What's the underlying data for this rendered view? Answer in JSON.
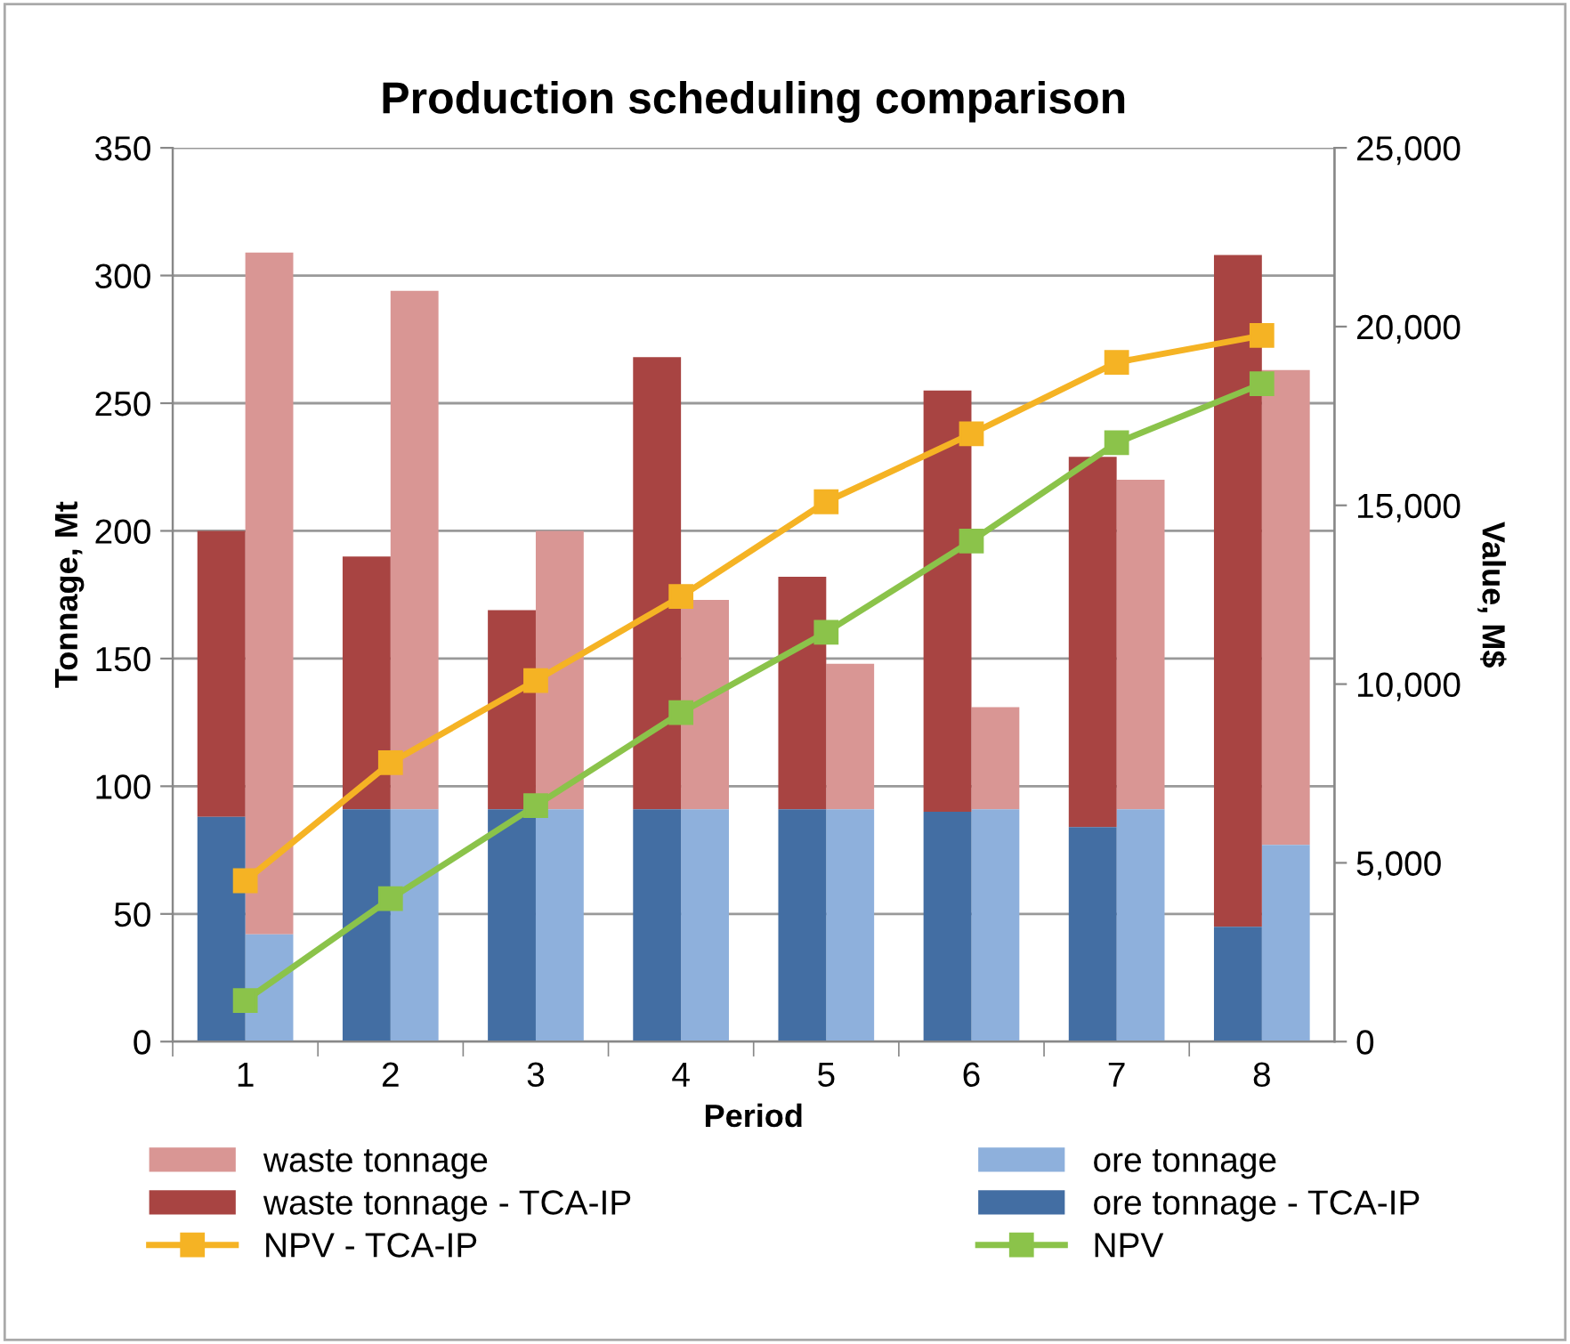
{
  "chart_data": {
    "type": "bar",
    "title": "Production scheduling comparison",
    "xlabel": "Period",
    "ylabel": "Tonnage, Mt",
    "y2label": "Value, M$",
    "categories": [
      "1",
      "2",
      "3",
      "4",
      "5",
      "6",
      "7",
      "8"
    ],
    "series": [
      {
        "name": "waste tonnage",
        "color": "#d99694",
        "base": [
          42,
          91,
          91,
          91,
          91,
          91,
          91,
          77
        ],
        "values": [
          267,
          203,
          109,
          82,
          57,
          40,
          129,
          186
        ]
      },
      {
        "name": "ore tonnage",
        "color": "#8eb0dc",
        "values": [
          42,
          91,
          91,
          91,
          91,
          91,
          91,
          77
        ]
      },
      {
        "name": "waste tonnage - TCA-IP",
        "color": "#a84442",
        "base": [
          88,
          91,
          91,
          91,
          91,
          90,
          84,
          45
        ],
        "values": [
          112,
          99,
          78,
          177,
          91,
          165,
          145,
          263
        ]
      },
      {
        "name": "ore tonnage - TCA-IP",
        "color": "#436ea3",
        "values": [
          88,
          91,
          91,
          91,
          91,
          90,
          84,
          45
        ]
      },
      {
        "name": "NPV - TCA-IP",
        "type": "line",
        "axis": "y2",
        "color": "#f5b324",
        "marker": "square",
        "values": [
          4500,
          7800,
          10100,
          12450,
          15100,
          17000,
          19000,
          19750
        ]
      },
      {
        "name": "NPV",
        "type": "line",
        "axis": "y2",
        "color": "#8bc34a",
        "marker": "square",
        "values": [
          1150,
          4000,
          6600,
          9200,
          11450,
          14000,
          16750,
          18400
        ]
      }
    ],
    "ylim": [
      0,
      350
    ],
    "yticks": [
      0,
      50,
      100,
      150,
      200,
      250,
      300,
      350
    ],
    "y2lim": [
      0,
      25000
    ],
    "y2ticks": [
      {
        "value": 0,
        "label": "0"
      },
      {
        "value": 5000,
        "label": "5,000"
      },
      {
        "value": 10000,
        "label": "10,000"
      },
      {
        "value": 15000,
        "label": "15,000"
      },
      {
        "value": 20000,
        "label": "20,000"
      },
      {
        "value": 25000,
        "label": "25,000"
      }
    ],
    "grid": "y",
    "legend": "bottom"
  }
}
